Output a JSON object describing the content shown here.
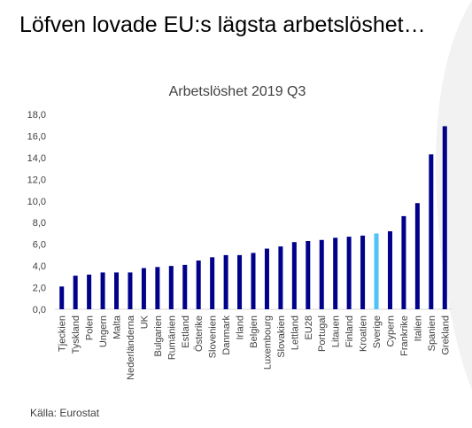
{
  "headline": "Löfven lovade EU:s lägsta arbetslöshet…",
  "source": "Källa: Eurostat",
  "colors": {
    "bar": "#00008B",
    "highlight": "#4FC3F7",
    "axis": "#D9D9D9",
    "background_curve": "#F2F2F2"
  },
  "chart_data": {
    "type": "bar",
    "title": "Arbetslöshet 2019 Q3",
    "xlabel": "",
    "ylabel": "",
    "ylim": [
      0,
      18
    ],
    "yticks": [
      "0,0",
      "2,0",
      "4,0",
      "6,0",
      "8,0",
      "10,0",
      "12,0",
      "14,0",
      "16,0",
      "18,0"
    ],
    "grid": false,
    "legend": "none",
    "highlight_category": "Sverige",
    "categories": [
      "Tjeckien",
      "Tyskland",
      "Polen",
      "Ungern",
      "Malta",
      "Nederländerna",
      "UK",
      "Bulgarien",
      "Rumänien",
      "Estland",
      "Österike",
      "Slovenien",
      "Danmark",
      "Irland",
      "Belgien",
      "Luxembourg",
      "Slovakien",
      "Lettland",
      "EU28",
      "Portugal",
      "Litauen",
      "Finland",
      "Kroatien",
      "Sverige",
      "Cypern",
      "Frankrike",
      "Italien",
      "Spanien",
      "Grekland"
    ],
    "values": [
      2.1,
      3.1,
      3.2,
      3.4,
      3.4,
      3.4,
      3.8,
      3.9,
      4.0,
      4.1,
      4.5,
      4.8,
      5.0,
      5.0,
      5.2,
      5.6,
      5.8,
      6.2,
      6.3,
      6.4,
      6.6,
      6.7,
      6.8,
      7.0,
      7.2,
      8.6,
      9.8,
      14.3,
      16.9
    ]
  }
}
